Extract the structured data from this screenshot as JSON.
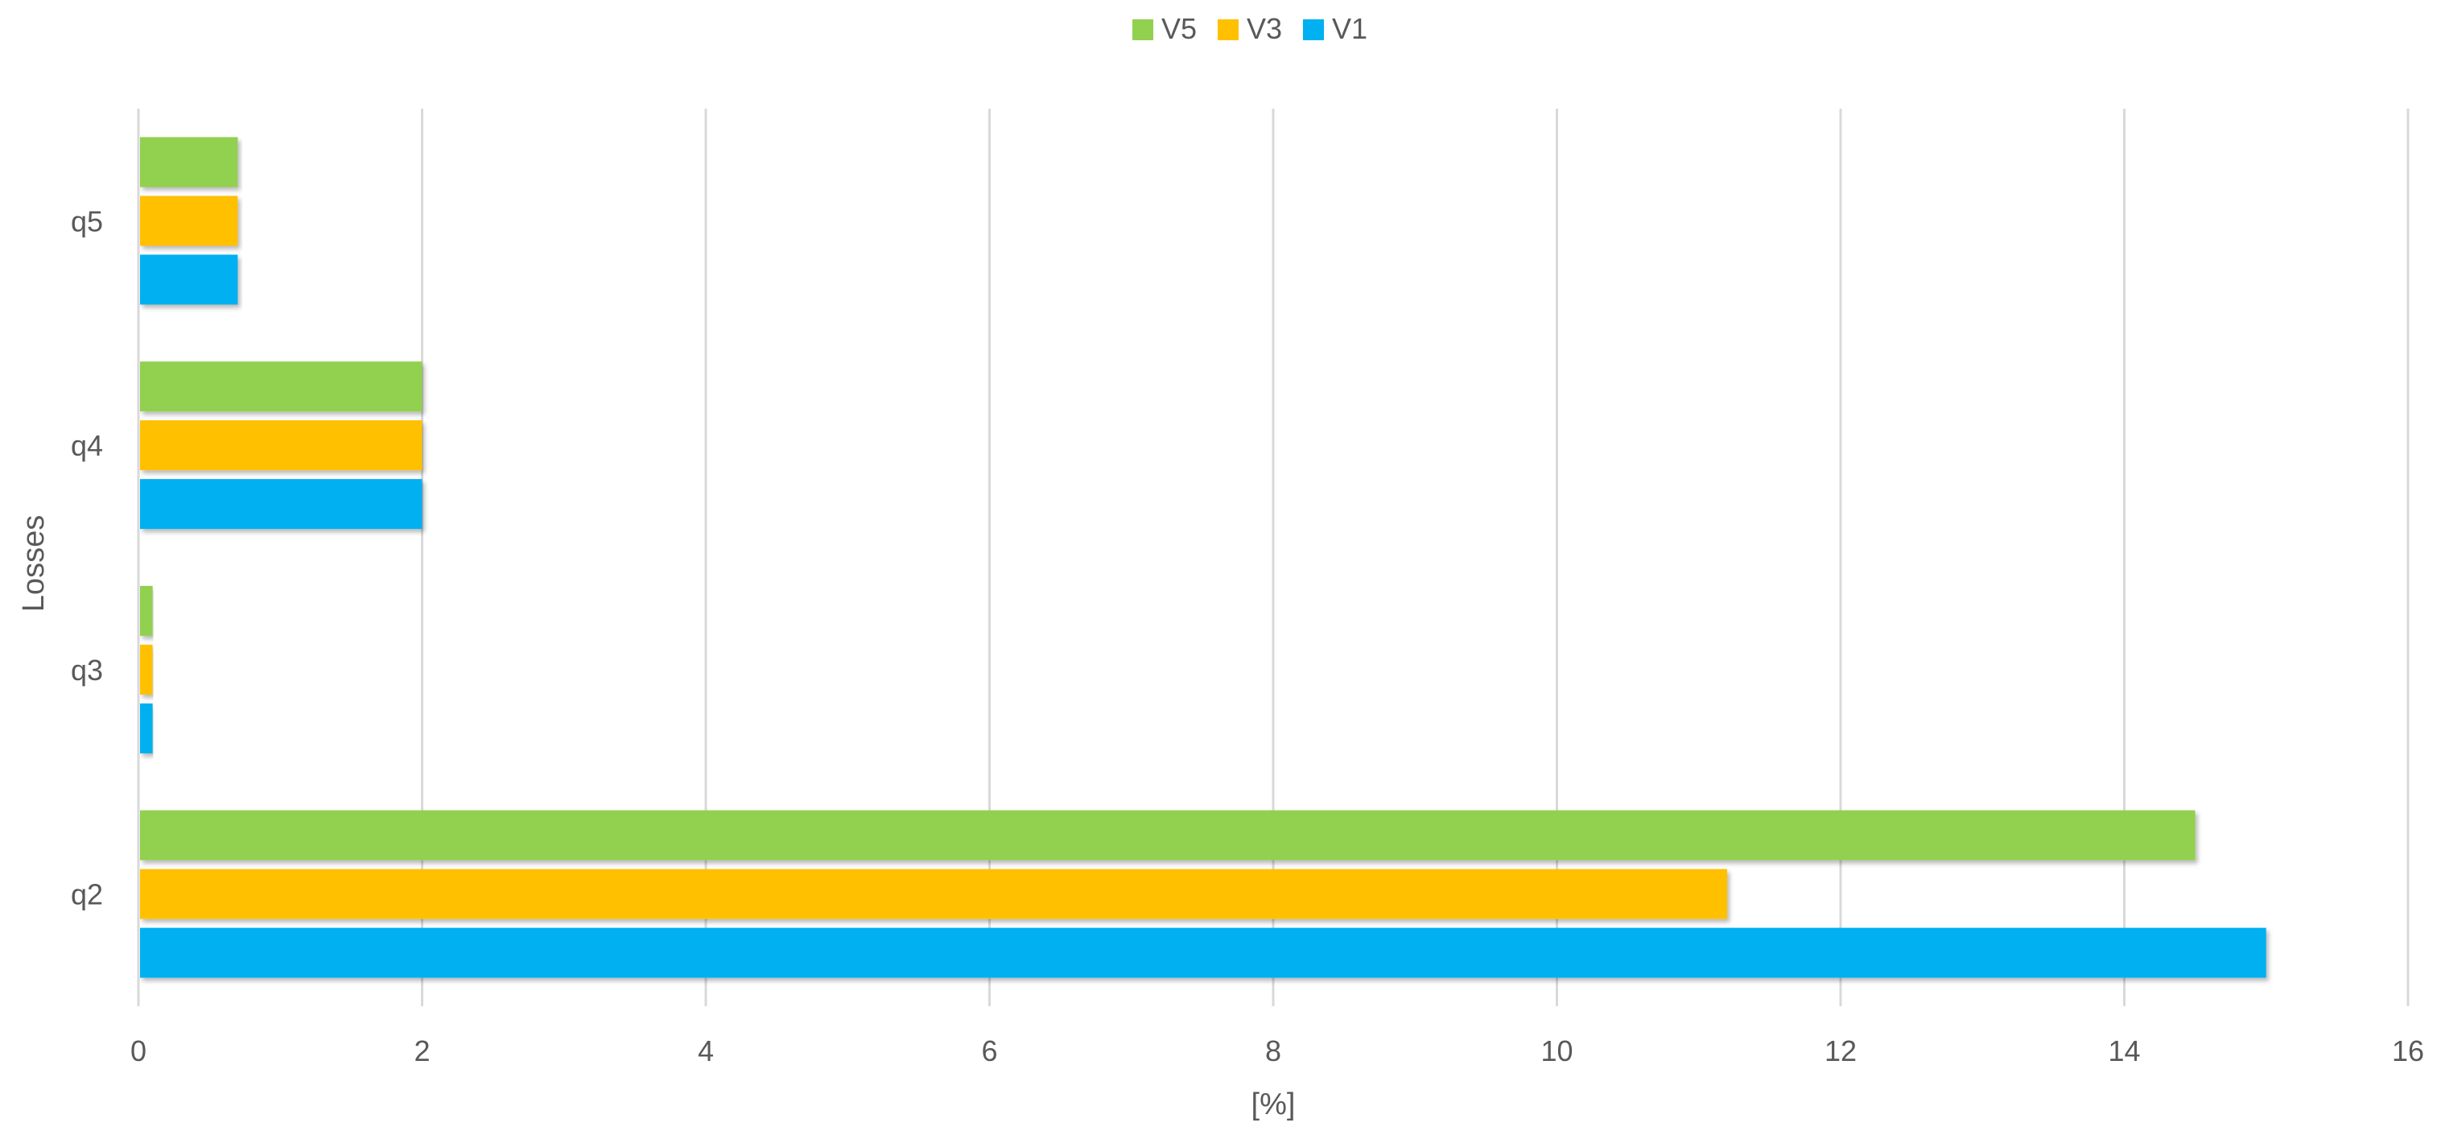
{
  "chart_data": {
    "type": "bar",
    "orientation": "horizontal",
    "title": "",
    "xlabel": "[%]",
    "ylabel": "Losses",
    "categories": [
      "q2",
      "q3",
      "q4",
      "q5"
    ],
    "series": [
      {
        "name": "V1",
        "color": "#00B0F0",
        "values": [
          15.0,
          0.1,
          2.0,
          0.7
        ]
      },
      {
        "name": "V3",
        "color": "#FFC000",
        "values": [
          11.2,
          0.1,
          2.0,
          0.7
        ]
      },
      {
        "name": "V5",
        "color": "#92D050",
        "values": [
          14.5,
          0.1,
          2.0,
          0.7
        ]
      }
    ],
    "legend_order": [
      "V5",
      "V3",
      "V1"
    ],
    "legend_position": "top",
    "xlim": [
      0,
      16
    ],
    "xticks": [
      0,
      2,
      4,
      6,
      8,
      10,
      12,
      14,
      16
    ],
    "grid": "vertical"
  }
}
